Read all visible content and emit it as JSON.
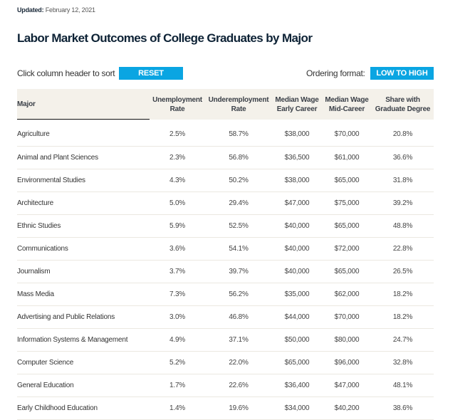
{
  "updated": {
    "label": "Updated:",
    "date": "February 12, 2021"
  },
  "title": "Labor Market Outcomes of College Graduates by Major",
  "controls": {
    "sort_hint": "Click column header to sort",
    "reset_label": "RESET",
    "ordering_label": "Ordering format:",
    "ordering_value": "LOW TO HIGH",
    "accent": "#0aa5e2"
  },
  "table": {
    "headers": [
      [
        "Major"
      ],
      [
        "Unemployment",
        "Rate"
      ],
      [
        "Underemployment",
        "Rate"
      ],
      [
        "Median Wage",
        "Early Career"
      ],
      [
        "Median Wage",
        "Mid-Career"
      ],
      [
        "Share with",
        "Graduate Degree"
      ]
    ],
    "rows": [
      [
        "Agriculture",
        "2.5%",
        "58.7%",
        "$38,000",
        "$70,000",
        "20.8%"
      ],
      [
        "Animal and Plant Sciences",
        "2.3%",
        "56.8%",
        "$36,500",
        "$61,000",
        "36.6%"
      ],
      [
        "Environmental Studies",
        "4.3%",
        "50.2%",
        "$38,000",
        "$65,000",
        "31.8%"
      ],
      [
        "Architecture",
        "5.0%",
        "29.4%",
        "$47,000",
        "$75,000",
        "39.2%"
      ],
      [
        "Ethnic Studies",
        "5.9%",
        "52.5%",
        "$40,000",
        "$65,000",
        "48.8%"
      ],
      [
        "Communications",
        "3.6%",
        "54.1%",
        "$40,000",
        "$72,000",
        "22.8%"
      ],
      [
        "Journalism",
        "3.7%",
        "39.7%",
        "$40,000",
        "$65,000",
        "26.5%"
      ],
      [
        "Mass Media",
        "7.3%",
        "56.2%",
        "$35,000",
        "$62,000",
        "18.2%"
      ],
      [
        "Advertising and Public Relations",
        "3.0%",
        "46.8%",
        "$44,000",
        "$70,000",
        "18.2%"
      ],
      [
        "Information Systems & Management",
        "4.9%",
        "37.1%",
        "$50,000",
        "$80,000",
        "24.7%"
      ],
      [
        "Computer Science",
        "5.2%",
        "22.0%",
        "$65,000",
        "$96,000",
        "32.8%"
      ],
      [
        "General Education",
        "1.7%",
        "22.6%",
        "$36,400",
        "$47,000",
        "48.1%"
      ],
      [
        "Early Childhood Education",
        "1.4%",
        "19.6%",
        "$34,000",
        "$40,200",
        "38.6%"
      ]
    ]
  }
}
